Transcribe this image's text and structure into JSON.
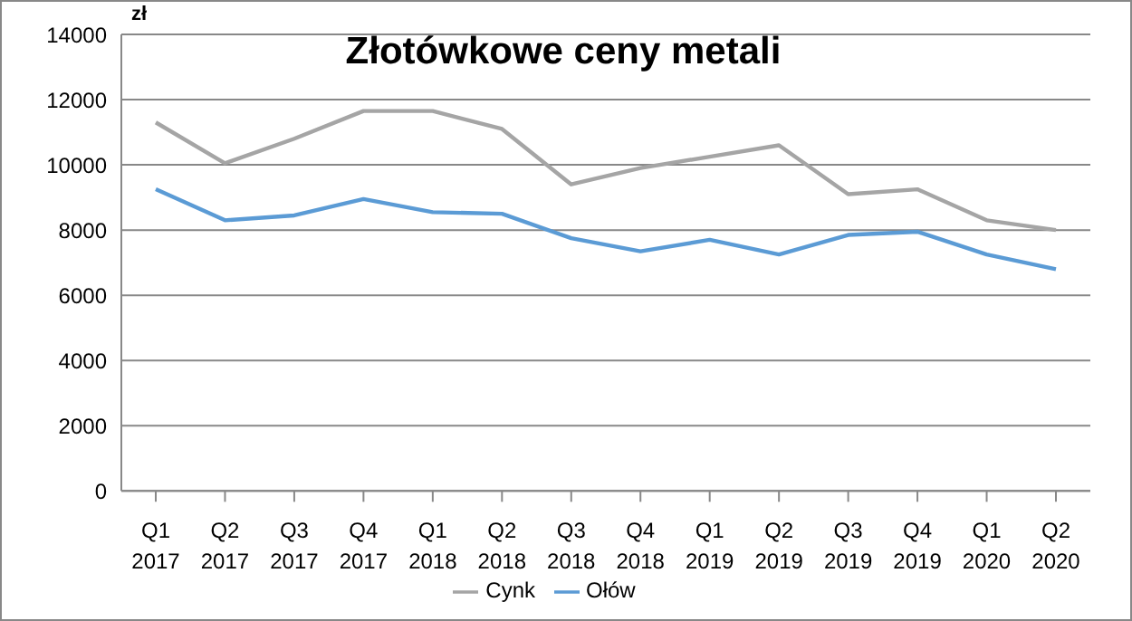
{
  "chart_data": {
    "type": "line",
    "title": "Złotówkowe ceny metali",
    "ylabel": "zł",
    "categories": [
      "Q1\n2017",
      "Q2\n2017",
      "Q3\n2017",
      "Q4\n2017",
      "Q1\n2018",
      "Q2\n2018",
      "Q3\n2018",
      "Q4\n2018",
      "Q1\n2019",
      "Q2\n2019",
      "Q3\n2019",
      "Q4\n2019",
      "Q1\n2020",
      "Q2\n2020"
    ],
    "series": [
      {
        "name": "Cynk",
        "color": "#a5a5a5",
        "values": [
          11300,
          10050,
          10800,
          11650,
          11650,
          11100,
          9400,
          9900,
          10250,
          10600,
          9100,
          9250,
          8300,
          8000
        ]
      },
      {
        "name": "Ołów",
        "color": "#5b9bd5",
        "values": [
          9250,
          8300,
          8450,
          8950,
          8550,
          8500,
          7750,
          7350,
          7700,
          7250,
          7850,
          7950,
          7250,
          6800
        ]
      }
    ],
    "ylim": [
      0,
      14000
    ],
    "yticks": [
      0,
      2000,
      4000,
      6000,
      8000,
      10000,
      12000,
      14000
    ],
    "grid": "y",
    "legend": "bottom",
    "marker": "none",
    "line_style": "solid"
  }
}
